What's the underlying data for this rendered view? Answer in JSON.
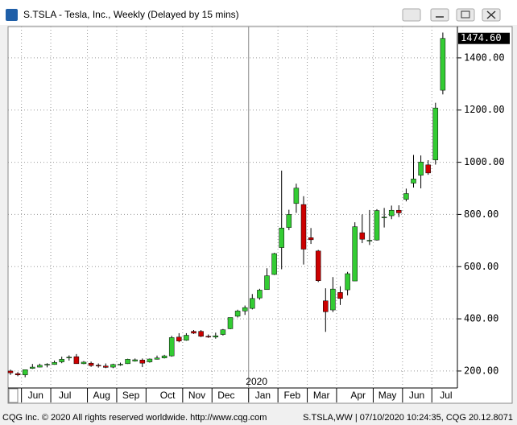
{
  "window": {
    "title": "S.TSLA - Tesla, Inc., Weekly (Delayed by 15 mins)"
  },
  "footer": {
    "left": "CQG Inc. © 2020 All rights reserved worldwide. http://www.cqg.com",
    "right": "S.TSLA,WW | 07/10/2020 10:24:35, CQG 20.12.8071"
  },
  "chart_data": {
    "type": "candlestick",
    "categories": [
      null,
      null,
      null,
      "Jun",
      null,
      null,
      null,
      "Jul",
      null,
      null,
      null,
      null,
      "Aug",
      null,
      null,
      null,
      "Sep",
      null,
      null,
      null,
      null,
      "Oct",
      null,
      null,
      null,
      "Nov",
      null,
      null,
      null,
      "Dec",
      null,
      null,
      null,
      null,
      "Jan",
      null,
      null,
      null,
      "Feb",
      null,
      null,
      null,
      "Mar",
      null,
      null,
      null,
      null,
      "Apr",
      null,
      null,
      null,
      "May",
      null,
      null,
      null,
      "Jun",
      null,
      null,
      null,
      "Jul"
    ],
    "year_label": "2020",
    "open": [
      200,
      190,
      185,
      210,
      215,
      223,
      225,
      235,
      250,
      255,
      228,
      230,
      222,
      219,
      215,
      224,
      228,
      238,
      242,
      235,
      245,
      250,
      258,
      330,
      318,
      352,
      352,
      333,
      330,
      340,
      362,
      410,
      430,
      440,
      480,
      512,
      570,
      673,
      750,
      842,
      838,
      711,
      660,
      469,
      434,
      501,
      511,
      545,
      730,
      700,
      702,
      790,
      795,
      816,
      858,
      920,
      950,
      990,
      1009,
      1276
    ],
    "high": [
      205,
      196,
      205,
      227,
      228,
      230,
      240,
      255,
      260,
      265,
      238,
      236,
      229,
      229,
      228,
      232,
      247,
      248,
      248,
      248,
      259,
      262,
      335,
      345,
      345,
      357,
      357,
      340,
      347,
      361,
      405,
      435,
      451,
      495,
      515,
      594,
      653,
      968,
      818,
      918,
      870,
      748,
      664,
      517,
      560,
      525,
      580,
      770,
      800,
      817,
      820,
      825,
      834,
      835,
      899,
      1028,
      1026,
      1008,
      1228,
      1497
    ],
    "low": [
      185,
      180,
      176,
      208,
      214,
      214,
      224,
      230,
      240,
      228,
      226,
      216,
      213,
      211,
      211,
      220,
      227,
      236,
      215,
      232,
      244,
      248,
      255,
      310,
      316,
      342,
      330,
      327,
      324,
      336,
      360,
      405,
      415,
      436,
      473,
      512,
      568,
      590,
      740,
      806,
      608,
      687,
      541,
      350,
      426,
      453,
      490,
      545,
      690,
      683,
      700,
      750,
      782,
      790,
      850,
      903,
      900,
      952,
      991,
      1260
    ],
    "close": [
      193,
      185,
      205,
      215,
      222,
      226,
      233,
      245,
      253,
      228,
      234,
      221,
      219,
      214,
      225,
      226,
      245,
      243,
      230,
      246,
      250,
      258,
      328,
      315,
      337,
      345,
      333,
      330,
      335,
      358,
      405,
      430,
      443,
      478,
      510,
      565,
      650,
      748,
      800,
      901,
      667,
      703,
      546,
      427,
      514,
      478,
      573,
      753,
      705,
      701,
      815,
      790,
      816,
      806,
      880,
      936,
      1001,
      959,
      1208,
      1474.6
    ],
    "up_color": "#33cc33",
    "down_color": "#cc0000",
    "ylim": [
      135,
      1520
    ],
    "yticks": [
      {
        "value": 200,
        "label": "200.00"
      },
      {
        "value": 400,
        "label": "400.00"
      },
      {
        "value": 600,
        "label": "600.00"
      },
      {
        "value": 800,
        "label": "800.00"
      },
      {
        "value": 1000,
        "label": "1000.00"
      },
      {
        "value": 1200,
        "label": "1200.00"
      },
      {
        "value": 1400,
        "label": "1400.00"
      }
    ],
    "last_price": {
      "value": 1474.6,
      "label": "1474.60"
    },
    "grid": true
  }
}
